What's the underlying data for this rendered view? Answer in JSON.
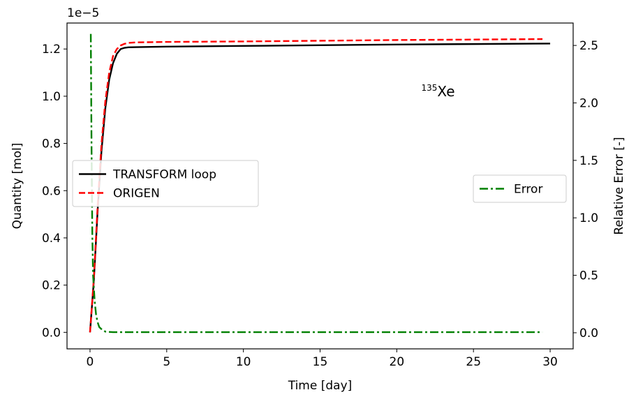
{
  "chart_data": {
    "type": "line",
    "xlabel": "Time [day]",
    "ylabel_left": "Quantity [mol]",
    "ylabel_right": "Relative Error [-]",
    "left_scale_label": "1e−5",
    "annotation": {
      "superscript": "135",
      "text": "Xe"
    },
    "xlim": [
      -1.5,
      31.5
    ],
    "ylim_left": [
      -0.07,
      1.31
    ],
    "ylim_right": [
      -0.14,
      2.695
    ],
    "left_multiplier": 1e-05,
    "x_ticks": [
      0,
      5,
      10,
      15,
      20,
      25,
      30
    ],
    "x_tick_labels": [
      "0",
      "5",
      "10",
      "15",
      "20",
      "25",
      "30"
    ],
    "y_left_ticks": [
      0.0,
      0.2,
      0.4,
      0.6,
      0.8,
      1.0,
      1.2
    ],
    "y_left_tick_labels": [
      "0.0",
      "0.2",
      "0.4",
      "0.6",
      "0.8",
      "1.0",
      "1.2"
    ],
    "y_right_ticks": [
      0.0,
      0.5,
      1.0,
      1.5,
      2.0,
      2.5
    ],
    "y_right_tick_labels": [
      "0.0",
      "0.5",
      "1.0",
      "1.5",
      "2.0",
      "2.5"
    ],
    "grid": false,
    "legend_left": {
      "placement": "center-left",
      "entries": [
        {
          "label": "TRANSFORM loop",
          "color": "#000000",
          "dash": "solid"
        },
        {
          "label": "ORIGEN",
          "color": "#ff0000",
          "dash": "dashed"
        }
      ]
    },
    "legend_right": {
      "placement": "center-right",
      "entries": [
        {
          "label": "Error",
          "color": "#008000",
          "dash": "dashdot"
        }
      ]
    },
    "series": [
      {
        "name": "TRANSFORM loop",
        "axis": "left",
        "color": "#000000",
        "dash": "solid",
        "x": [
          0,
          0.25,
          0.5,
          0.75,
          1.0,
          1.25,
          1.5,
          1.75,
          2.0,
          2.25,
          2.5,
          3,
          4,
          5,
          10,
          15,
          20,
          25,
          30
        ],
        "y": [
          0.0,
          0.22,
          0.52,
          0.77,
          0.95,
          1.07,
          1.14,
          1.18,
          1.2,
          1.205,
          1.207,
          1.208,
          1.209,
          1.21,
          1.213,
          1.216,
          1.219,
          1.221,
          1.223
        ]
      },
      {
        "name": "ORIGEN",
        "axis": "left",
        "color": "#ff0000",
        "dash": "dashed",
        "x": [
          0,
          0.25,
          0.5,
          0.75,
          1.0,
          1.25,
          1.5,
          1.75,
          2.0,
          2.25,
          2.5,
          3,
          4,
          5,
          10,
          15,
          20,
          25,
          29.5
        ],
        "y": [
          0.0,
          0.23,
          0.54,
          0.8,
          0.98,
          1.1,
          1.17,
          1.2,
          1.215,
          1.222,
          1.226,
          1.228,
          1.229,
          1.23,
          1.232,
          1.235,
          1.238,
          1.24,
          1.242
        ]
      },
      {
        "name": "Error",
        "axis": "right",
        "color": "#008000",
        "dash": "dashdot",
        "x": [
          0.05,
          0.1,
          0.15,
          0.2,
          0.3,
          0.4,
          0.5,
          0.6,
          0.8,
          1.0,
          1.5,
          2,
          5,
          10,
          15,
          20,
          25,
          29.5
        ],
        "y": [
          2.6,
          1.6,
          0.85,
          0.5,
          0.28,
          0.15,
          0.09,
          0.05,
          0.025,
          0.01,
          0.005,
          0.005,
          0.005,
          0.005,
          0.005,
          0.005,
          0.005,
          0.005
        ]
      }
    ]
  }
}
